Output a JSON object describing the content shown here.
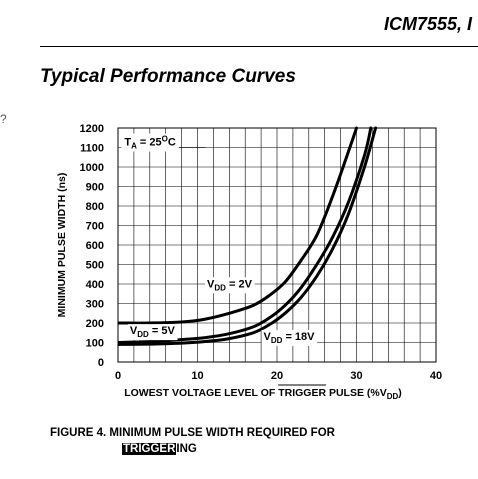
{
  "header": {
    "doc_title": "ICM7555, I",
    "section_title": "Typical Performance Curves",
    "margin_mark": "?"
  },
  "chart_data": {
    "type": "line",
    "title": "",
    "xlabel_pre": "LOWEST VOLTAGE LEVEL OF ",
    "xlabel_trigger": "TRIGGER",
    "xlabel_mid": " PULSE (%V",
    "xlabel_sub": "DD",
    "xlabel_post": ")",
    "ylabel": "MINIMUM PULSE WIDTH (ns)",
    "xlim": [
      0,
      40
    ],
    "ylim": [
      0,
      1200
    ],
    "xticks": [
      0,
      10,
      20,
      30,
      40
    ],
    "yticks": [
      0,
      100,
      200,
      300,
      400,
      500,
      600,
      700,
      800,
      900,
      1000,
      1100,
      1200
    ],
    "grid": true,
    "annotation": {
      "pre": "T",
      "sub": "A",
      "eq": " = 25",
      "sup": "O",
      "post": "C"
    },
    "series": [
      {
        "name": "VDD = 2V",
        "label_pre": "V",
        "label_sub": "DD",
        "label_post": " = 2V",
        "x": [
          0,
          4,
          8,
          11,
          14,
          17,
          19,
          21,
          23,
          25,
          27,
          29,
          30
        ],
        "y": [
          200,
          200,
          205,
          220,
          250,
          290,
          340,
          410,
          520,
          650,
          850,
          1080,
          1200
        ]
      },
      {
        "name": "VDD = 5V",
        "label_pre": "V",
        "label_sub": "DD",
        "label_post": " = 5V",
        "x": [
          0,
          4,
          8,
          11,
          14,
          17,
          19,
          21,
          23,
          25,
          27,
          29,
          31,
          31.8
        ],
        "y": [
          100,
          105,
          115,
          125,
          145,
          180,
          225,
          290,
          380,
          500,
          640,
          820,
          1060,
          1200
        ]
      },
      {
        "name": "VDD = 18V",
        "label_pre": "V",
        "label_sub": "DD",
        "label_post": " = 18V",
        "x": [
          0,
          4,
          8,
          11,
          14,
          17,
          19,
          21,
          23,
          25,
          27,
          29,
          31,
          32.4
        ],
        "y": [
          90,
          92,
          97,
          105,
          120,
          150,
          190,
          250,
          330,
          440,
          580,
          760,
          1000,
          1200
        ]
      }
    ]
  },
  "caption": {
    "line1": "FIGURE 4.  MINIMUM PULSE WIDTH REQUIRED FOR",
    "line2_highlight": "TRIGGER",
    "line2_rest": "ING"
  }
}
